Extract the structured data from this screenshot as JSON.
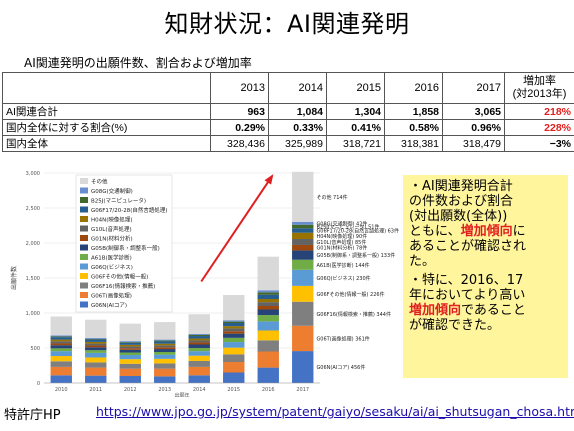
{
  "title": "知財状況：AI関連発明",
  "subtitle": "AI関連発明の出願件数、割合および増加率",
  "table": {
    "years": [
      "2013",
      "2014",
      "2015",
      "2016",
      "2017"
    ],
    "rate_header_line1": "増加率",
    "rate_header_line2": "(対2013年)",
    "rows": [
      {
        "label": "AI関連合計",
        "values": [
          "963",
          "1,084",
          "1,304",
          "1,858",
          "3,065"
        ],
        "rate": "218%"
      },
      {
        "label": "国内全体に対する割合(%)",
        "values": [
          "0.29%",
          "0.33%",
          "0.41%",
          "0.58%",
          "0.96%"
        ],
        "rate": "228%"
      },
      {
        "label": "国内全体",
        "values": [
          "328,436",
          "325,989",
          "318,721",
          "318,381",
          "318,479"
        ],
        "rate": "−3%"
      }
    ]
  },
  "chart_data": {
    "type": "bar",
    "stacked": true,
    "ylabel": "出願件数",
    "xlabel": "出願年",
    "ylim": [
      0,
      3000
    ],
    "yticks": [
      "0",
      "500",
      "1,000",
      "1,500",
      "2,000",
      "2,500",
      "3,000"
    ],
    "categories": [
      "2010",
      "2011",
      "2012",
      "2013",
      "2014",
      "2015",
      "2016",
      "2017"
    ],
    "series": [
      {
        "name": "G06N(AIコア)",
        "color": "#4472c4",
        "values": [
          110,
          105,
          100,
          95,
          110,
          150,
          220,
          456
        ]
      },
      {
        "name": "G06T(画像処理)",
        "color": "#ed7d31",
        "values": [
          120,
          115,
          105,
          110,
          120,
          150,
          230,
          361
        ]
      },
      {
        "name": "G06F16(情報検索・推薦)",
        "color": "#7f7f7f",
        "values": [
          80,
          75,
          70,
          75,
          85,
          110,
          160,
          344
        ]
      },
      {
        "name": "G06Fその他(情報一般)",
        "color": "#ffc000",
        "values": [
          75,
          70,
          65,
          65,
          75,
          95,
          140,
          226
        ]
      },
      {
        "name": "G06Q(ビジネス)",
        "color": "#5b9bd5",
        "values": [
          70,
          65,
          60,
          60,
          65,
          80,
          130,
          230
        ]
      },
      {
        "name": "A61B(医学診断)",
        "color": "#70ad47",
        "values": [
          40,
          38,
          35,
          38,
          45,
          60,
          90,
          144
        ]
      },
      {
        "name": "G05B(制御系・調整系一般)",
        "color": "#264478",
        "values": [
          45,
          42,
          40,
          42,
          50,
          60,
          80,
          133
        ]
      },
      {
        "name": "G01N(材料分析)",
        "color": "#9e480e",
        "values": [
          25,
          25,
          22,
          25,
          28,
          35,
          50,
          78
        ]
      },
      {
        "name": "G10L(音声処理)",
        "color": "#636363",
        "values": [
          30,
          28,
          26,
          28,
          30,
          40,
          55,
          85
        ]
      },
      {
        "name": "H04N(映像処理)",
        "color": "#997300",
        "values": [
          25,
          24,
          22,
          24,
          27,
          32,
          45,
          90
        ]
      },
      {
        "name": "G06F17/20-28(自然言語処理)",
        "color": "#255e91",
        "values": [
          35,
          33,
          30,
          32,
          36,
          45,
          60,
          63
        ]
      },
      {
        "name": "B25J(マニピュレータ)",
        "color": "#43682b",
        "values": [
          10,
          10,
          10,
          12,
          15,
          20,
          35,
          51
        ]
      },
      {
        "name": "G08G(交通制御)",
        "color": "#698ed0",
        "values": [
          15,
          14,
          13,
          14,
          16,
          20,
          30,
          42
        ]
      },
      {
        "name": "その他",
        "color": "#d9d9d9",
        "values": [
          270,
          260,
          250,
          250,
          280,
          360,
          480,
          714
        ]
      }
    ],
    "annotations": [
      "その他 714件",
      "G08G(交通制御) 42件",
      "B25J(マニピュレータ) 51件",
      "G06F17/20-28(自然言語処理) 63件",
      "H04N(映像処理) 90件",
      "G10L(音声処理) 85件",
      "G01N(材料分析) 78件",
      "G05B(制御系・調整系一般) 133件",
      "A61B(医学診断) 144件",
      "G06Q(ビジネス) 230件",
      "G06Fその他(情報一般) 226件",
      "G06F16(情報検索・推薦) 344件",
      "G06T(画像処理) 361件",
      "G06N(AIコア) 456件"
    ],
    "trend_arrow_color": "#e02020"
  },
  "callout": {
    "p1_a": "・AI関連発明合計",
    "p1_b": "の件数および割合",
    "p1_c": "(対出願数(全体))",
    "p1_d_pre": "ともに、",
    "p1_d_hl": "増加傾向",
    "p1_d_post": "に",
    "p1_e": "あることが確認され",
    "p1_f": "た。",
    "p2_a": "・特に、2016、17",
    "p2_b": "年においてより高い",
    "p2_c_hl": "増加傾向",
    "p2_c_post": "であること",
    "p2_d": "が確認できた。"
  },
  "source": {
    "label": "特許庁HP",
    "url": "https://www.jpo.go.jp/system/patent/gaiyo/sesaku/ai/ai_shutsugan_chosa.html"
  }
}
